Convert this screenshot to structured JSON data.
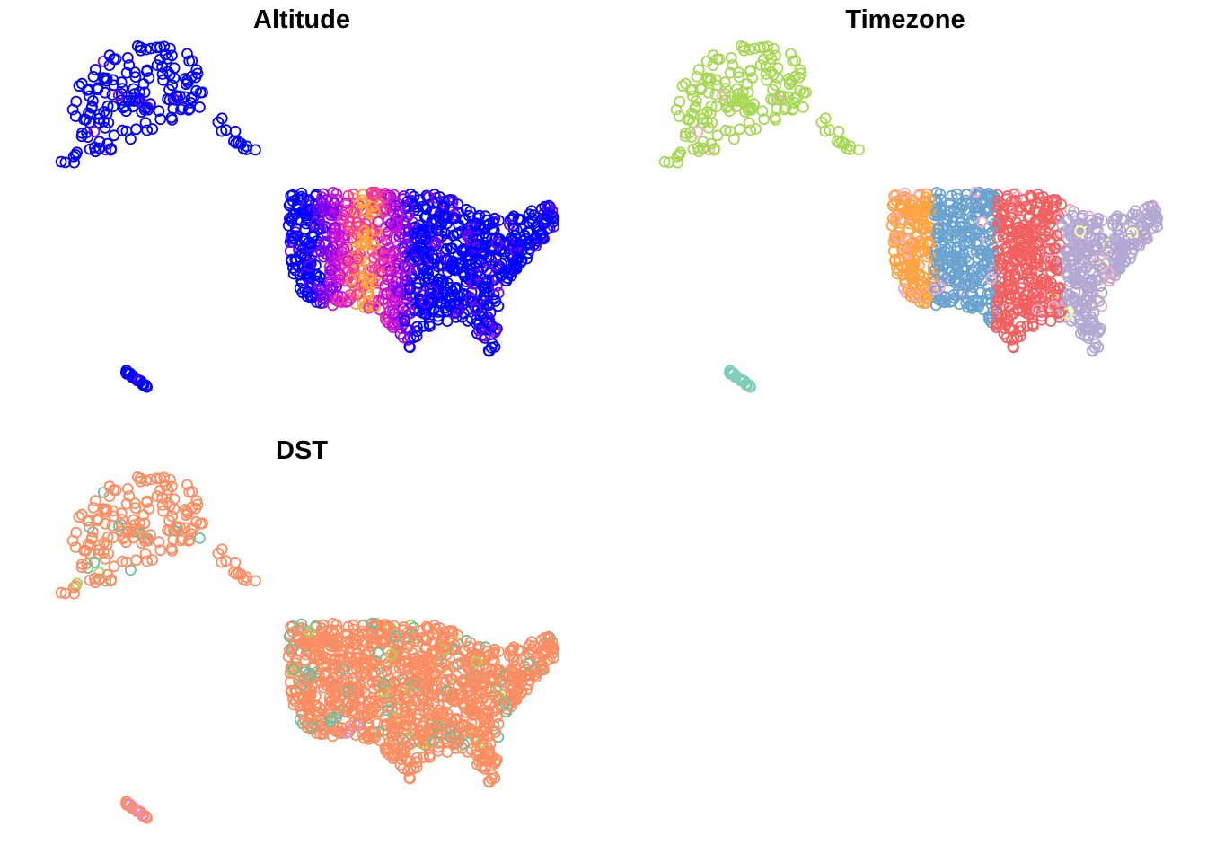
{
  "figure": {
    "panels": [
      {
        "id": "altitude",
        "title": "Altitude",
        "color_by": "altitude",
        "palette": [
          "#0000FF",
          "#7A00F0",
          "#C810D8",
          "#F23C9A",
          "#FFA03C"
        ]
      },
      {
        "id": "timezone",
        "title": "Timezone",
        "color_by": "timezone",
        "palette": [
          "#A6D854",
          "#FFA343",
          "#6BA3D0",
          "#F26060",
          "#B3A8D2",
          "#F8A8CC",
          "#FFFF99",
          "#7FCDBB"
        ]
      },
      {
        "id": "dst",
        "title": "DST",
        "color_by": "dst",
        "palette": [
          "#FC8D62",
          "#66C2A5",
          "#A6D854",
          "#E78AC3"
        ]
      }
    ]
  },
  "chart_data": {
    "type": "scatter",
    "marker": "open-circle",
    "description_of_points": "US airports plotted by longitude/latitude, Alaska and Hawaii shown as insets",
    "region_clusters": [
      {
        "region": "alaska",
        "count": 180
      },
      {
        "region": "contiguous-us",
        "count": 1150
      },
      {
        "region": "hawaii",
        "count": 18
      }
    ],
    "legend": "none",
    "grid": false
  }
}
